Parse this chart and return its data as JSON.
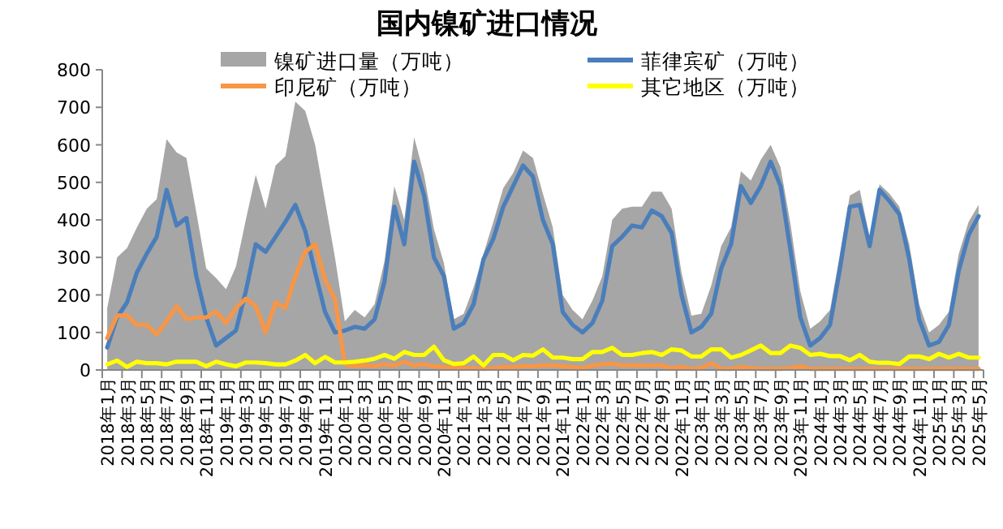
{
  "chart_data": {
    "type": "line",
    "title": "国内镍矿进口情况",
    "categories": [
      "2018年1月",
      null,
      "2018年3月",
      null,
      "2018年5月",
      null,
      "2018年7月",
      null,
      "2018年9月",
      null,
      "2018年11月",
      null,
      "2019年1月",
      null,
      "2019年3月",
      null,
      "2019年5月",
      null,
      "2019年7月",
      null,
      "2019年9月",
      null,
      "2019年11月",
      null,
      "2020年1月",
      null,
      "2020年3月",
      null,
      "2020年5月",
      null,
      "2020年7月",
      null,
      "2020年9月",
      null,
      "2020年11月",
      null,
      "2021年1月",
      null,
      "2021年3月",
      null,
      "2021年5月",
      null,
      "2021年7月",
      null,
      "2021年9月",
      null,
      "2021年11月",
      null,
      "2022年1月",
      null,
      "2022年3月",
      null,
      "2022年5月",
      null,
      "2022年7月",
      null,
      "2022年9月",
      null,
      "2022年11月",
      null,
      "2023年1月",
      null,
      "2023年3月",
      null,
      "2023年5月",
      null,
      "2023年7月",
      null,
      "2023年9月",
      null,
      "2023年11月",
      null,
      "2024年1月",
      null,
      "2024年3月",
      null,
      "2024年5月",
      null,
      "2024年7月",
      null,
      "2024年9月",
      null,
      "2024年11月",
      null,
      "2025年1月",
      null,
      "2025年3月",
      null,
      "2025年5月"
    ],
    "series": [
      {
        "name": "镍矿进口量（万吨）",
        "type": "area",
        "color": "#a6a6a6",
        "values": [
          165,
          300,
          325,
          380,
          430,
          455,
          615,
          580,
          565,
          420,
          270,
          245,
          215,
          275,
          400,
          520,
          430,
          545,
          570,
          715,
          690,
          600,
          450,
          300,
          130,
          160,
          140,
          175,
          290,
          490,
          400,
          620,
          520,
          375,
          285,
          135,
          150,
          220,
          310,
          395,
          485,
          525,
          585,
          565,
          470,
          380,
          200,
          160,
          135,
          185,
          250,
          400,
          430,
          435,
          435,
          475,
          475,
          430,
          260,
          145,
          150,
          225,
          330,
          380,
          530,
          505,
          560,
          600,
          540,
          390,
          210,
          110,
          130,
          160,
          310,
          465,
          480,
          355,
          495,
          470,
          435,
          335,
          175,
          100,
          120,
          155,
          310,
          395,
          440
        ]
      },
      {
        "name": "菲律宾矿（万吨）",
        "color": "#4a7ebb",
        "values": [
          60,
          140,
          180,
          260,
          310,
          355,
          480,
          385,
          405,
          250,
          140,
          65,
          85,
          105,
          210,
          335,
          315,
          355,
          395,
          440,
          370,
          260,
          155,
          100,
          105,
          115,
          110,
          135,
          235,
          435,
          335,
          555,
          465,
          300,
          250,
          110,
          125,
          175,
          295,
          350,
          435,
          490,
          545,
          515,
          400,
          335,
          155,
          120,
          100,
          125,
          185,
          330,
          355,
          385,
          380,
          425,
          410,
          365,
          200,
          100,
          115,
          150,
          270,
          335,
          490,
          445,
          490,
          555,
          490,
          320,
          140,
          65,
          85,
          120,
          270,
          435,
          440,
          330,
          480,
          450,
          415,
          295,
          135,
          65,
          75,
          120,
          265,
          360,
          410
        ]
      },
      {
        "name": "印尼矿（万吨）",
        "color": "#f79646",
        "values": [
          85,
          145,
          145,
          120,
          120,
          95,
          130,
          170,
          135,
          140,
          140,
          155,
          125,
          165,
          190,
          170,
          100,
          180,
          165,
          250,
          315,
          335,
          240,
          190,
          15,
          10,
          12,
          10,
          15,
          12,
          22,
          12,
          15,
          10,
          8,
          5,
          5,
          5,
          3,
          5,
          8,
          8,
          10,
          10,
          12,
          12,
          10,
          8,
          5,
          12,
          15,
          17,
          12,
          12,
          12,
          12,
          12,
          5,
          8,
          3,
          5,
          18,
          3,
          3,
          8,
          5,
          3,
          3,
          3,
          5,
          10,
          3,
          3,
          3,
          3,
          3,
          3,
          3,
          3,
          3,
          3,
          3,
          3,
          3,
          3,
          3,
          3,
          3,
          3
        ]
      },
      {
        "name": "其它地区（万吨）",
        "color": "#ffff00",
        "values": [
          15,
          25,
          8,
          22,
          18,
          18,
          15,
          22,
          22,
          22,
          10,
          22,
          15,
          10,
          20,
          20,
          18,
          15,
          15,
          25,
          40,
          18,
          35,
          20,
          20,
          22,
          25,
          30,
          40,
          30,
          48,
          40,
          40,
          62,
          26,
          16,
          18,
          36,
          12,
          40,
          40,
          26,
          40,
          38,
          55,
          33,
          33,
          29,
          29,
          48,
          48,
          59,
          40,
          40,
          45,
          48,
          40,
          55,
          52,
          36,
          36,
          55,
          55,
          33,
          40,
          52,
          65,
          45,
          45,
          65,
          59,
          40,
          43,
          37,
          37,
          26,
          40,
          22,
          19,
          19,
          16,
          36,
          36,
          29,
          43,
          33,
          43,
          33,
          33
        ]
      }
    ],
    "ylim": [
      0,
      800
    ],
    "yticks": [
      0,
      100,
      200,
      300,
      400,
      500,
      600,
      700,
      800
    ],
    "legend": "top",
    "marker": "none",
    "line_style": "solid"
  }
}
